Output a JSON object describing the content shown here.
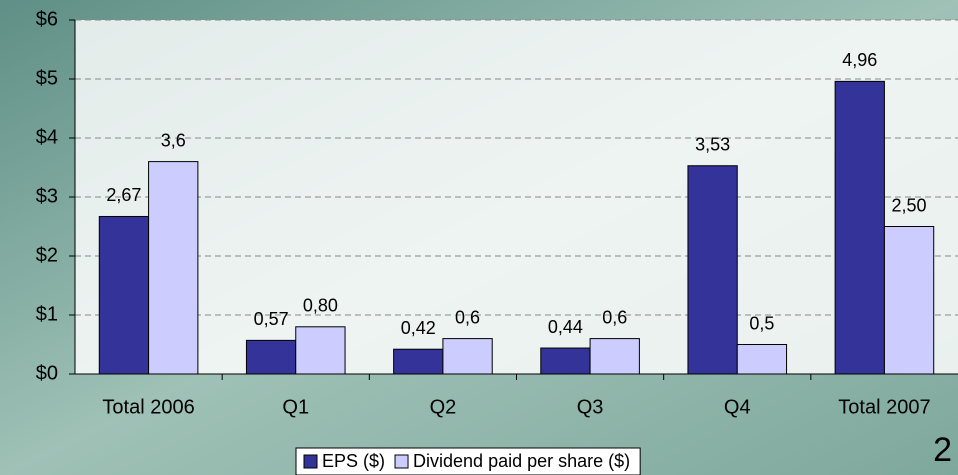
{
  "chart_data": {
    "type": "bar",
    "categories": [
      "Total 2006",
      "Q1",
      "Q2",
      "Q3",
      "Q4",
      "Total 2007"
    ],
    "series": [
      {
        "name": "EPS ($)",
        "color": "#333399",
        "values": [
          2.67,
          0.57,
          0.42,
          0.44,
          3.53,
          4.96
        ],
        "value_labels": [
          "2,67",
          "0,57",
          "0,42",
          "0,44",
          "3,53",
          "4,96"
        ]
      },
      {
        "name": "Dividend paid per share ($)",
        "color": "#ccccff",
        "values": [
          3.6,
          0.8,
          0.6,
          0.6,
          0.5,
          2.5
        ],
        "value_labels": [
          "3,6",
          "0,80",
          "0,6",
          "0,6",
          "0,5",
          "2,50"
        ]
      }
    ],
    "ylim": [
      0,
      6
    ],
    "yticks": [
      {
        "value": 0,
        "label": "$0"
      },
      {
        "value": 1,
        "label": "$1"
      },
      {
        "value": 2,
        "label": "$2"
      },
      {
        "value": 3,
        "label": "$3"
      },
      {
        "value": 4,
        "label": "$4"
      },
      {
        "value": 5,
        "label": "$5"
      },
      {
        "value": 6,
        "label": "$6"
      }
    ],
    "grid": true,
    "legend": "bottom"
  },
  "slide": {
    "page_number": "2"
  }
}
